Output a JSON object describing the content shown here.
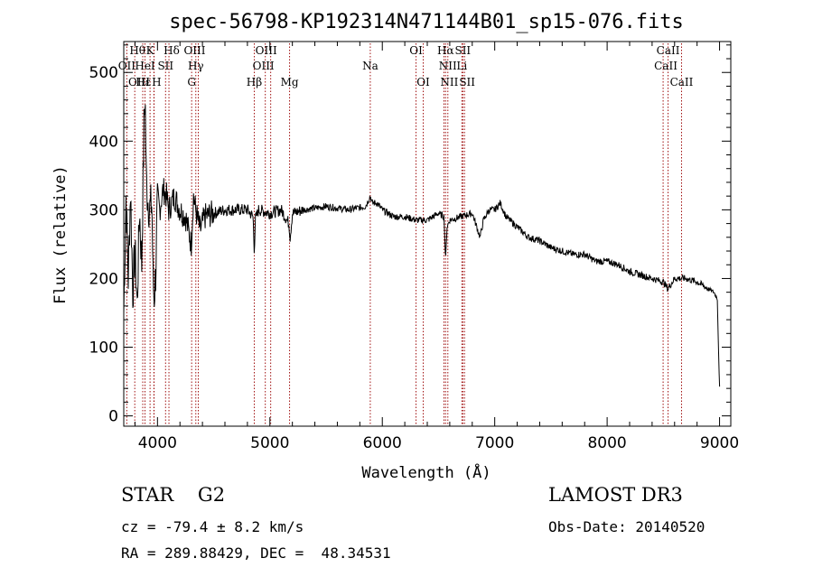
{
  "chart_data": {
    "type": "line",
    "title": "spec-56798-KP192314N471144B01_sp15-076.fits",
    "xlabel": "Wavelength (Å)",
    "ylabel": "Flux (relative)",
    "xlim": [
      3700,
      9100
    ],
    "ylim": [
      -15,
      545
    ],
    "xticks": [
      4000,
      5000,
      6000,
      7000,
      8000,
      9000
    ],
    "yticks": [
      0,
      100,
      200,
      300,
      400,
      500
    ],
    "grid": false,
    "line_color": "#000000",
    "marker_color": "#a01010",
    "spectrum_anchors": {
      "x": [
        3700,
        3720,
        3740,
        3760,
        3780,
        3800,
        3820,
        3840,
        3860,
        3880,
        3890,
        3900,
        3910,
        3930,
        3950,
        3960,
        3970,
        3985,
        4000,
        4020,
        4050,
        4080,
        4100,
        4150,
        4200,
        4250,
        4300,
        4320,
        4340,
        4380,
        4420,
        4500,
        4600,
        4700,
        4800,
        4850,
        4861,
        4870,
        4900,
        5000,
        5100,
        5170,
        5180,
        5200,
        5300,
        5500,
        5700,
        5850,
        5893,
        5910,
        5950,
        6000,
        6100,
        6200,
        6300,
        6400,
        6500,
        6550,
        6563,
        6575,
        6600,
        6700,
        6800,
        6870,
        6900,
        6950,
        7000,
        7050,
        7100,
        7200,
        7300,
        7400,
        7500,
        7600,
        7700,
        7800,
        7900,
        8000,
        8100,
        8200,
        8300,
        8400,
        8500,
        8540,
        8600,
        8700,
        8800,
        8900,
        8950,
        8980,
        8990,
        9000
      ],
      "y": [
        150,
        320,
        200,
        330,
        180,
        240,
        160,
        300,
        220,
        420,
        470,
        350,
        320,
        300,
        310,
        200,
        170,
        210,
        320,
        300,
        330,
        320,
        300,
        320,
        300,
        290,
        250,
        320,
        300,
        270,
        290,
        295,
        300,
        300,
        300,
        290,
        240,
        285,
        300,
        295,
        300,
        280,
        260,
        295,
        300,
        305,
        300,
        305,
        320,
        310,
        310,
        300,
        290,
        290,
        285,
        285,
        295,
        290,
        225,
        275,
        285,
        290,
        295,
        260,
        285,
        300,
        300,
        310,
        290,
        275,
        260,
        255,
        245,
        240,
        235,
        235,
        225,
        225,
        220,
        210,
        205,
        200,
        195,
        185,
        200,
        200,
        195,
        185,
        180,
        170,
        100,
        40
      ]
    },
    "spectral_lines": [
      {
        "label": "Hθ",
        "wavelength": 3798,
        "row": 0,
        "dx": 3
      },
      {
        "label": "K",
        "wavelength": 3934,
        "row": 0,
        "dx": 0
      },
      {
        "label": "Hδ",
        "wavelength": 4102,
        "row": 0,
        "dx": 3
      },
      {
        "label": "OIII",
        "wavelength": 4363,
        "row": 0,
        "dx": -4
      },
      {
        "label": "OIII",
        "wavelength": 4959,
        "row": 0,
        "dx": 1
      },
      {
        "label": "OI",
        "wavelength": 6300,
        "row": 0,
        "dx": 0
      },
      {
        "label": "Hα",
        "wavelength": 6563,
        "row": 0,
        "dx": 0
      },
      {
        "label": "SII",
        "wavelength": 6716,
        "row": 0,
        "dx": 0
      },
      {
        "label": "CaII",
        "wavelength": 8542,
        "row": 0,
        "dx": 0
      },
      {
        "label": "OII",
        "wavelength": 3727,
        "row": 1,
        "dx": 0
      },
      {
        "label": "HeI",
        "wavelength": 3889,
        "row": 1,
        "dx": 0
      },
      {
        "label": "SII",
        "wavelength": 4072,
        "row": 1,
        "dx": 0
      },
      {
        "label": "Hγ",
        "wavelength": 4341,
        "row": 1,
        "dx": 0
      },
      {
        "label": "OIII",
        "wavelength": 5007,
        "row": 1,
        "dx": -8
      },
      {
        "label": "Na",
        "wavelength": 5893,
        "row": 1,
        "dx": 0
      },
      {
        "label": "NII",
        "wavelength": 6583,
        "row": 1,
        "dx": 0
      },
      {
        "label": "Li",
        "wavelength": 6708,
        "row": 1,
        "dx": 0
      },
      {
        "label": "CaII",
        "wavelength": 8498,
        "row": 1,
        "dx": 3
      },
      {
        "label": "OIII",
        "wavelength": 3869,
        "row": 2,
        "dx": -4
      },
      {
        "label": "Hε",
        "wavelength": 3970,
        "row": 2,
        "dx": -12
      },
      {
        "label": "H",
        "wavelength": 3968,
        "row": 2,
        "dx": 3
      },
      {
        "label": "G",
        "wavelength": 4304,
        "row": 2,
        "dx": 0
      },
      {
        "label": "Hβ",
        "wavelength": 4861,
        "row": 2,
        "dx": 0
      },
      {
        "label": "Mg",
        "wavelength": 5175,
        "row": 2,
        "dx": 0
      },
      {
        "label": "OI",
        "wavelength": 6364,
        "row": 2,
        "dx": 0
      },
      {
        "label": "NII",
        "wavelength": 6548,
        "row": 2,
        "dx": 6
      },
      {
        "label": "SII",
        "wavelength": 6731,
        "row": 2,
        "dx": 3
      },
      {
        "label": "CaII",
        "wavelength": 8662,
        "row": 2,
        "dx": 0
      }
    ]
  },
  "info": {
    "classification": "STAR    G2",
    "redshift": "cz = -79.4 ± 8.2 km/s",
    "coordinates": "RA = 289.88429, DEC =  48.34531",
    "survey": "LAMOST DR3",
    "obs_date": "Obs-Date: 20140520"
  }
}
